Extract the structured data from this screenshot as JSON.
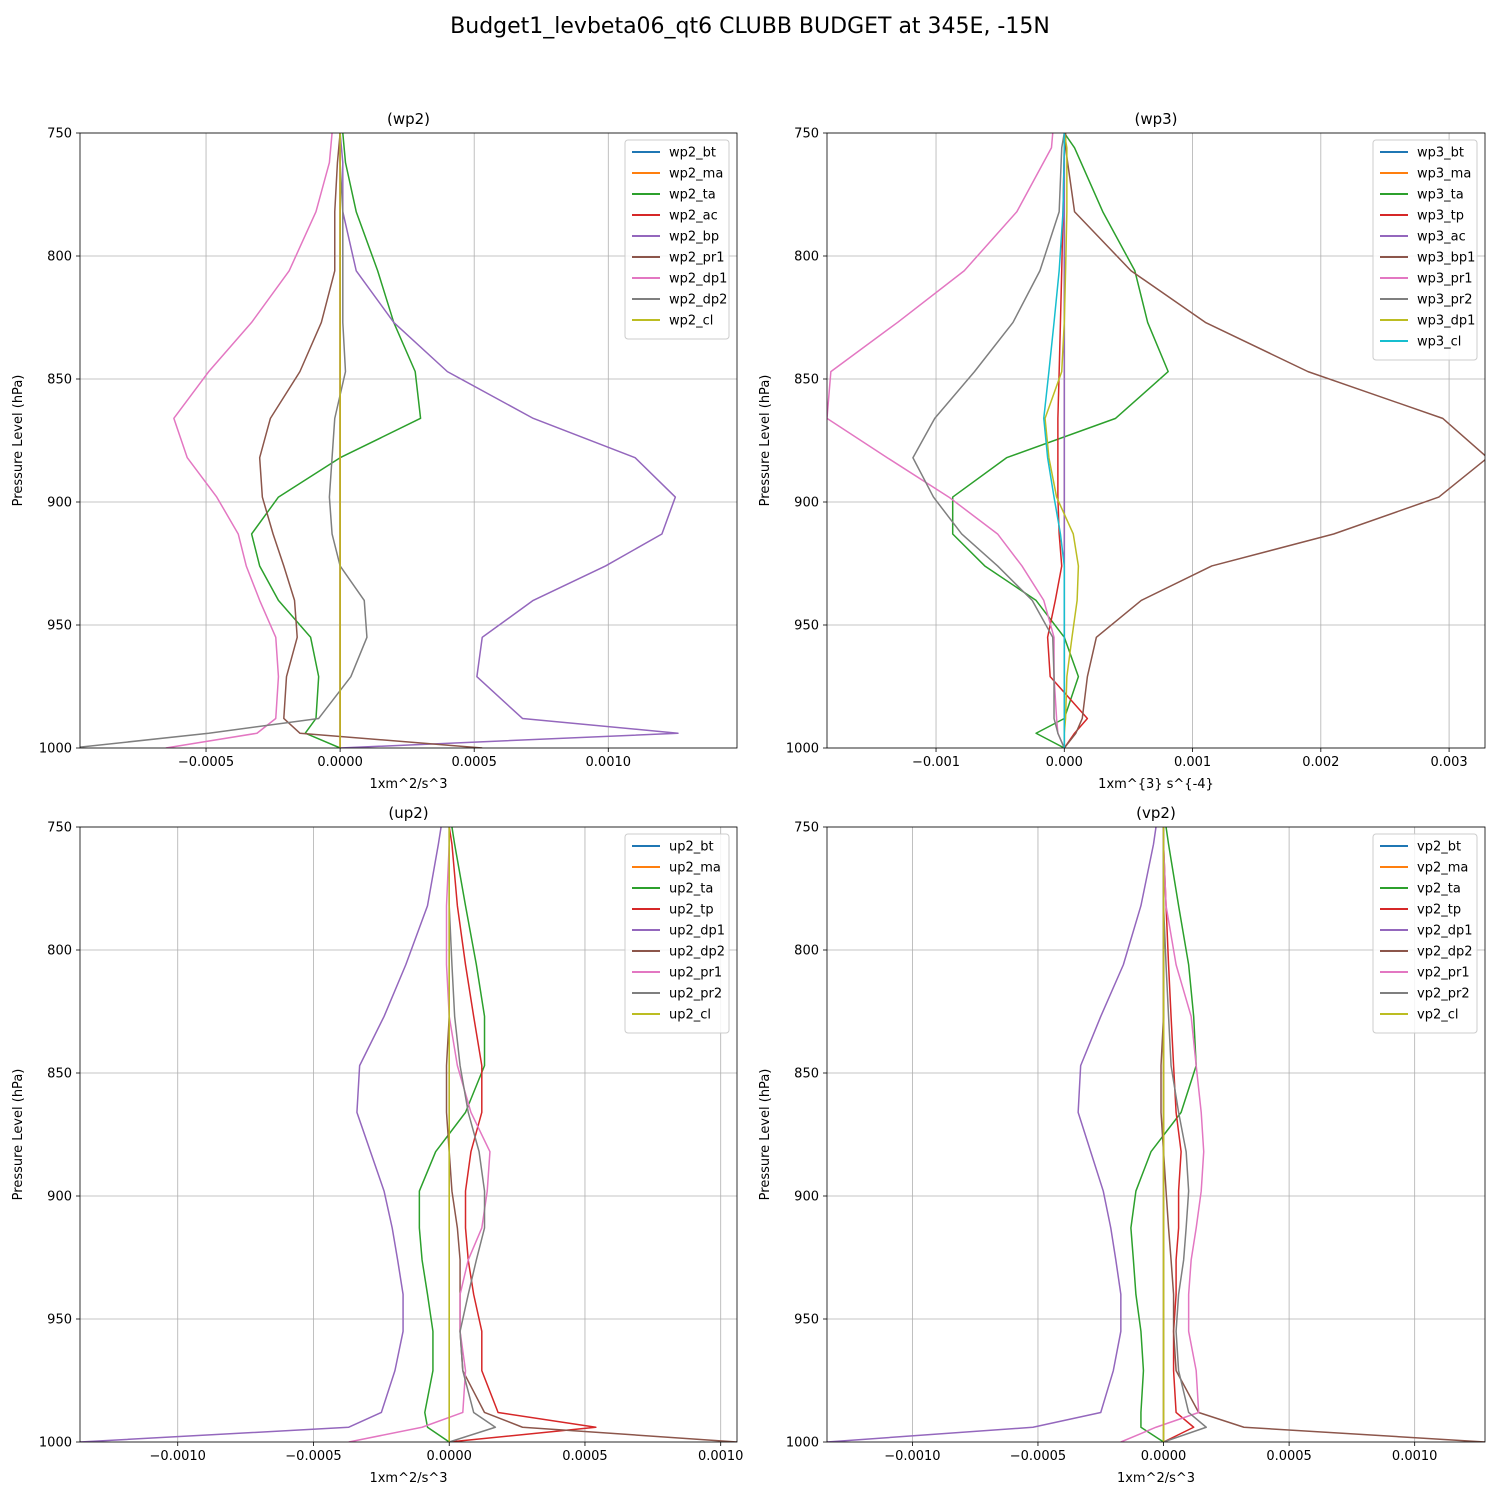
{
  "title": "Budget1_levbeta06_qt6 CLUBB BUDGET at 345E, -15N",
  "colors": {
    "bt": "#1f77b4",
    "ma": "#ff7f0e",
    "c3": "#2ca02c",
    "c4": "#d62728",
    "c5": "#9467bd",
    "c6": "#8c564b",
    "c7": "#e377c2",
    "c8": "#7f7f7f",
    "c9": "#bcbd22",
    "c10": "#17becf"
  },
  "chart_data": [
    {
      "type": "line",
      "title": "(wp2)",
      "xlabel": "1xm^2/s^3",
      "ylabel": "Pressure Level (hPa)",
      "xlim": [
        -0.00097,
        0.00148
      ],
      "ylim": [
        1000,
        750
      ],
      "xticks": [
        -0.0005,
        0.0,
        0.0005,
        0.001
      ],
      "xtick_labels": [
        "−0.0005",
        "0.0000",
        "0.0005",
        "0.0010"
      ],
      "yticks": [
        750,
        800,
        850,
        900,
        950,
        1000
      ],
      "ytick_labels": [
        "750",
        "800",
        "850",
        "900",
        "950",
        "1000"
      ],
      "grid": true,
      "legend_position": "upper right",
      "y": [
        750,
        762,
        782,
        806,
        827,
        847,
        866,
        882,
        898,
        913,
        926,
        940,
        955,
        971,
        988,
        994,
        1000
      ],
      "series": [
        {
          "name": "wp2_bt",
          "color": "#1f77b4",
          "x": [
            0,
            0,
            0,
            0,
            0,
            0,
            0,
            0,
            0,
            0,
            0,
            0,
            0,
            0,
            0,
            0,
            0
          ]
        },
        {
          "name": "wp2_ma",
          "color": "#ff7f0e",
          "x": [
            0,
            0,
            0,
            0,
            0,
            0,
            0,
            0,
            0,
            0,
            0,
            0,
            0,
            0,
            0,
            0,
            0
          ]
        },
        {
          "name": "wp2_ta",
          "color": "#2ca02c",
          "x": [
            1e-05,
            2e-05,
            6e-05,
            0.00014,
            0.0002,
            0.00028,
            0.0003,
            0.0,
            -0.00023,
            -0.00033,
            -0.0003,
            -0.00023,
            -0.00011,
            -8e-05,
            -9e-05,
            -0.00013,
            0.0
          ]
        },
        {
          "name": "wp2_ac",
          "color": "#d62728",
          "x": [
            0,
            0,
            0,
            0,
            0,
            0,
            0,
            0,
            0,
            0,
            0,
            0,
            0,
            0,
            0,
            0,
            0
          ]
        },
        {
          "name": "wp2_bp",
          "color": "#9467bd",
          "x": [
            0.0,
            1e-05,
            1e-05,
            6e-05,
            0.0002,
            0.0004,
            0.00072,
            0.0011,
            0.00125,
            0.0012,
            0.00099,
            0.00072,
            0.00053,
            0.00051,
            0.00068,
            0.00126,
            0.0
          ]
        },
        {
          "name": "wp2_pr1",
          "color": "#8c564b",
          "x": [
            0.0,
            -1e-05,
            -2e-05,
            -2e-05,
            -7e-05,
            -0.00015,
            -0.00026,
            -0.0003,
            -0.00029,
            -0.00025,
            -0.00021,
            -0.00017,
            -0.00016,
            -0.0002,
            -0.00021,
            -0.00015,
            0.00053
          ]
        },
        {
          "name": "wp2_dp1",
          "color": "#e377c2",
          "x": [
            -3e-05,
            -4e-05,
            -9e-05,
            -0.00019,
            -0.00033,
            -0.00049,
            -0.00062,
            -0.00057,
            -0.00046,
            -0.00038,
            -0.00035,
            -0.0003,
            -0.00024,
            -0.00023,
            -0.00024,
            -0.00031,
            -0.00065
          ]
        },
        {
          "name": "wp2_dp2",
          "color": "#7f7f7f",
          "x": [
            0.0,
            0.0,
            1e-05,
            1e-05,
            1e-05,
            2e-05,
            -2e-05,
            -3e-05,
            -4e-05,
            -3e-05,
            0.0,
            9e-05,
            0.0001,
            4e-05,
            -8e-05,
            -0.00049,
            -0.001
          ]
        },
        {
          "name": "wp2_cl",
          "color": "#bcbd22",
          "x": [
            0,
            0,
            0,
            0,
            0,
            0,
            0,
            0,
            0,
            0,
            0,
            0,
            0,
            0,
            0,
            0,
            0
          ]
        }
      ]
    },
    {
      "type": "line",
      "title": "(wp3)",
      "xlabel": "1xm^{3} s^{-4}",
      "ylabel": "Pressure Level (hPa)",
      "xlim": [
        -0.00185,
        0.00328
      ],
      "ylim": [
        1000,
        750
      ],
      "xticks": [
        -0.001,
        0.0,
        0.001,
        0.002,
        0.003
      ],
      "xtick_labels": [
        "−0.001",
        "0.000",
        "0.001",
        "0.002",
        "0.003"
      ],
      "yticks": [
        750,
        800,
        850,
        900,
        950,
        1000
      ],
      "ytick_labels": [
        "750",
        "800",
        "850",
        "900",
        "950",
        "1000"
      ],
      "grid": true,
      "legend_position": "upper right",
      "y": [
        750,
        756,
        782,
        806,
        827,
        847,
        866,
        882,
        898,
        913,
        926,
        940,
        955,
        971,
        988,
        994,
        1000
      ],
      "series": [
        {
          "name": "wp3_bt",
          "color": "#1f77b4",
          "x": [
            0,
            0,
            0,
            0,
            0,
            0,
            0,
            0,
            0,
            0,
            0,
            0,
            0,
            0,
            0,
            0,
            0
          ]
        },
        {
          "name": "wp3_ma",
          "color": "#ff7f0e",
          "x": [
            0,
            0,
            0,
            0,
            0,
            0,
            0,
            0,
            0,
            0,
            0,
            0,
            0,
            0,
            0,
            0,
            0
          ]
        },
        {
          "name": "wp3_ta",
          "color": "#2ca02c",
          "x": [
            0.0,
            8e-05,
            0.0003,
            0.00055,
            0.00065,
            0.00081,
            0.0004,
            -0.00045,
            -0.00087,
            -0.00087,
            -0.00062,
            -0.00022,
            0.0,
            0.00011,
            0.0,
            -0.00022,
            0.0
          ]
        },
        {
          "name": "wp3_tp",
          "color": "#d62728",
          "x": [
            0,
            0,
            -1e-05,
            -2e-05,
            -3e-05,
            -4e-05,
            -5e-05,
            -5e-05,
            -5e-05,
            -4e-05,
            -2e-05,
            -7e-05,
            -0.00013,
            -0.00011,
            0.00018,
            8e-05,
            0.0
          ]
        },
        {
          "name": "wp3_ac",
          "color": "#9467bd",
          "x": [
            0,
            0,
            0,
            0,
            0,
            0,
            0,
            0,
            0,
            0,
            0,
            0,
            0,
            0,
            0,
            0,
            0
          ]
        },
        {
          "name": "wp3_bp1",
          "color": "#8c564b",
          "x": [
            1e-05,
            1e-05,
            8e-05,
            0.00052,
            0.0011,
            0.0019,
            0.00295,
            0.0033,
            0.00292,
            0.0021,
            0.00115,
            0.0006,
            0.00025,
            0.00018,
            0.00014,
            9e-05,
            0.0
          ]
        },
        {
          "name": "wp3_pr1",
          "color": "#e377c2",
          "x": [
            -9e-05,
            -0.0001,
            -0.00037,
            -0.00078,
            -0.0013,
            -0.00182,
            -0.00185,
            -0.00138,
            -0.0009,
            -0.00052,
            -0.00033,
            -0.00016,
            -8e-05,
            -8e-05,
            -6e-05,
            -5e-05,
            0.0
          ]
        },
        {
          "name": "wp3_pr2",
          "color": "#7f7f7f",
          "x": [
            0.0,
            -2e-05,
            -4e-05,
            -0.00019,
            -0.0004,
            -0.0007,
            -0.00101,
            -0.00118,
            -0.00102,
            -0.0008,
            -0.00052,
            -0.00025,
            -9e-05,
            -8e-05,
            -8e-05,
            -5e-05,
            0.0
          ]
        },
        {
          "name": "wp3_dp1",
          "color": "#bcbd22",
          "x": [
            0.0,
            2e-05,
            2e-05,
            1e-05,
            0.0,
            -2e-05,
            -0.00015,
            -0.00012,
            -6e-05,
            7e-05,
            0.00011,
            0.0001,
            6e-05,
            2e-05,
            1e-05,
            0.0,
            0.0
          ]
        },
        {
          "name": "wp3_cl",
          "color": "#17becf",
          "x": [
            0.0,
            0.0,
            -1e-05,
            -4e-05,
            -8e-05,
            -0.00012,
            -0.00016,
            -0.00013,
            -8e-05,
            -3e-05,
            0.0,
            0.0,
            0.0,
            0.0,
            0.0,
            0.0,
            0.0
          ]
        }
      ]
    },
    {
      "type": "line",
      "title": "(up2)",
      "xlabel": "1xm^2/s^3",
      "ylabel": "Pressure Level (hPa)",
      "xlim": [
        -0.00136,
        0.00106
      ],
      "ylim": [
        1000,
        750
      ],
      "xticks": [
        -0.001,
        -0.0005,
        0.0,
        0.0005,
        0.001
      ],
      "xtick_labels": [
        "−0.0010",
        "−0.0005",
        "0.0000",
        "0.0005",
        "0.0010"
      ],
      "yticks": [
        750,
        800,
        850,
        900,
        950,
        1000
      ],
      "ytick_labels": [
        "750",
        "800",
        "850",
        "900",
        "950",
        "1000"
      ],
      "grid": true,
      "legend_position": "upper right",
      "y": [
        750,
        757,
        782,
        806,
        827,
        847,
        866,
        882,
        898,
        913,
        926,
        940,
        955,
        971,
        988,
        994,
        1000
      ],
      "series": [
        {
          "name": "up2_bt",
          "color": "#1f77b4",
          "x": [
            0,
            0,
            0,
            0,
            0,
            0,
            0,
            0,
            0,
            0,
            0,
            0,
            0,
            0,
            0,
            0,
            0
          ]
        },
        {
          "name": "up2_ma",
          "color": "#ff7f0e",
          "x": [
            0,
            0,
            0,
            0,
            0,
            0,
            0,
            0,
            0,
            0,
            0,
            0,
            0,
            0,
            0,
            0,
            0
          ]
        },
        {
          "name": "up2_ta",
          "color": "#2ca02c",
          "x": [
            1e-05,
            2e-05,
            6e-05,
            0.0001,
            0.00013,
            0.00013,
            6e-05,
            -5e-05,
            -0.00011,
            -0.00011,
            -0.0001,
            -8e-05,
            -6e-05,
            -6e-05,
            -9e-05,
            -8e-05,
            0.0
          ]
        },
        {
          "name": "up2_tp",
          "color": "#d62728",
          "x": [
            0.0,
            1e-05,
            3e-05,
            6e-05,
            9e-05,
            0.00012,
            0.00012,
            8e-05,
            6e-05,
            6e-05,
            7e-05,
            9e-05,
            0.00012,
            0.00012,
            0.00018,
            0.00054,
            0.0
          ]
        },
        {
          "name": "up2_dp1",
          "color": "#9467bd",
          "x": [
            -3e-05,
            -4e-05,
            -8e-05,
            -0.00016,
            -0.00024,
            -0.00033,
            -0.00034,
            -0.00029,
            -0.00024,
            -0.00021,
            -0.00019,
            -0.00017,
            -0.00017,
            -0.0002,
            -0.00025,
            -0.00037,
            -0.00136
          ]
        },
        {
          "name": "up2_dp2",
          "color": "#8c564b",
          "x": [
            0.0,
            0.0,
            0.0,
            0.0,
            0.0,
            -1e-05,
            -1e-05,
            0.0,
            1e-05,
            3e-05,
            4e-05,
            4e-05,
            4e-05,
            5e-05,
            0.00013,
            0.00027,
            0.00106
          ]
        },
        {
          "name": "up2_pr1",
          "color": "#e377c2",
          "x": [
            0.0,
            0.0,
            -1e-05,
            -1e-05,
            0.0,
            3e-05,
            8e-05,
            0.00015,
            0.00014,
            0.00012,
            7e-05,
            4e-05,
            4e-05,
            6e-05,
            5e-05,
            -0.0001,
            -0.00037
          ]
        },
        {
          "name": "up2_pr2",
          "color": "#7f7f7f",
          "x": [
            0.0,
            0.0,
            0.0,
            1e-05,
            2e-05,
            4e-05,
            7e-05,
            0.00011,
            0.00013,
            0.00013,
            0.0001,
            7e-05,
            4e-05,
            5e-05,
            9e-05,
            0.00017,
            0.0
          ]
        },
        {
          "name": "up2_cl",
          "color": "#bcbd22",
          "x": [
            0,
            0,
            0,
            0,
            0,
            0,
            0,
            0,
            0,
            0,
            0,
            0,
            0,
            0,
            0,
            0,
            0
          ]
        }
      ]
    },
    {
      "type": "line",
      "title": "(vp2)",
      "xlabel": "1xm^2/s^3",
      "ylabel": "Pressure Level (hPa)",
      "xlim": [
        -0.00134,
        0.00128
      ],
      "ylim": [
        1000,
        750
      ],
      "xticks": [
        -0.001,
        -0.0005,
        0.0,
        0.0005,
        0.001
      ],
      "xtick_labels": [
        "−0.0010",
        "−0.0005",
        "0.0000",
        "0.0005",
        "0.0010"
      ],
      "yticks": [
        750,
        800,
        850,
        900,
        950,
        1000
      ],
      "ytick_labels": [
        "750",
        "800",
        "850",
        "900",
        "950",
        "1000"
      ],
      "grid": true,
      "legend_position": "upper right",
      "y": [
        750,
        757,
        782,
        806,
        827,
        847,
        866,
        882,
        898,
        913,
        926,
        940,
        955,
        971,
        988,
        994,
        1000
      ],
      "series": [
        {
          "name": "vp2_bt",
          "color": "#1f77b4",
          "x": [
            0,
            0,
            0,
            0,
            0,
            0,
            0,
            0,
            0,
            0,
            0,
            0,
            0,
            0,
            0,
            0,
            0
          ]
        },
        {
          "name": "vp2_ma",
          "color": "#ff7f0e",
          "x": [
            0,
            0,
            0,
            0,
            0,
            0,
            0,
            0,
            0,
            0,
            0,
            0,
            0,
            0,
            0,
            0,
            0
          ]
        },
        {
          "name": "vp2_ta",
          "color": "#2ca02c",
          "x": [
            1e-05,
            2e-05,
            6e-05,
            0.0001,
            0.00012,
            0.00013,
            7e-05,
            -5e-05,
            -0.00011,
            -0.00013,
            -0.00012,
            -0.00011,
            -9e-05,
            -8e-05,
            -9e-05,
            -9e-05,
            0.0
          ]
        },
        {
          "name": "vp2_tp",
          "color": "#d62728",
          "x": [
            0.0,
            0.0,
            1e-05,
            2e-05,
            3e-05,
            4e-05,
            5e-05,
            7e-05,
            6e-05,
            6e-05,
            5e-05,
            5e-05,
            4e-05,
            4e-05,
            5e-05,
            0.00012,
            0.0
          ]
        },
        {
          "name": "vp2_dp1",
          "color": "#9467bd",
          "x": [
            -3e-05,
            -4e-05,
            -9e-05,
            -0.00016,
            -0.00025,
            -0.00033,
            -0.00034,
            -0.00029,
            -0.00024,
            -0.00021,
            -0.00019,
            -0.00017,
            -0.00017,
            -0.0002,
            -0.00025,
            -0.00052,
            -0.00134
          ]
        },
        {
          "name": "vp2_dp2",
          "color": "#8c564b",
          "x": [
            0.0,
            0.0,
            0.0,
            0.0,
            0.0,
            -1e-05,
            -1e-05,
            0.0,
            1e-05,
            2e-05,
            3e-05,
            4e-05,
            4e-05,
            5e-05,
            0.00014,
            0.00032,
            0.00128
          ]
        },
        {
          "name": "vp2_pr1",
          "color": "#e377c2",
          "x": [
            0.0,
            0.0,
            1e-05,
            5e-05,
            0.00011,
            0.00013,
            0.00015,
            0.00016,
            0.00015,
            0.00013,
            0.00011,
            0.0001,
            0.0001,
            0.00013,
            0.00014,
            -3e-05,
            -0.00017
          ]
        },
        {
          "name": "vp2_pr2",
          "color": "#7f7f7f",
          "x": [
            0.0,
            0.0,
            0.0,
            1e-05,
            2e-05,
            3e-05,
            6e-05,
            9e-05,
            0.0001,
            9e-05,
            8e-05,
            6e-05,
            5e-05,
            6e-05,
            0.0001,
            0.00017,
            0.0
          ]
        },
        {
          "name": "vp2_cl",
          "color": "#bcbd22",
          "x": [
            0,
            0,
            0,
            0,
            0,
            0,
            0,
            0,
            0,
            0,
            0,
            0,
            0,
            0,
            0,
            0,
            0
          ]
        }
      ]
    }
  ]
}
